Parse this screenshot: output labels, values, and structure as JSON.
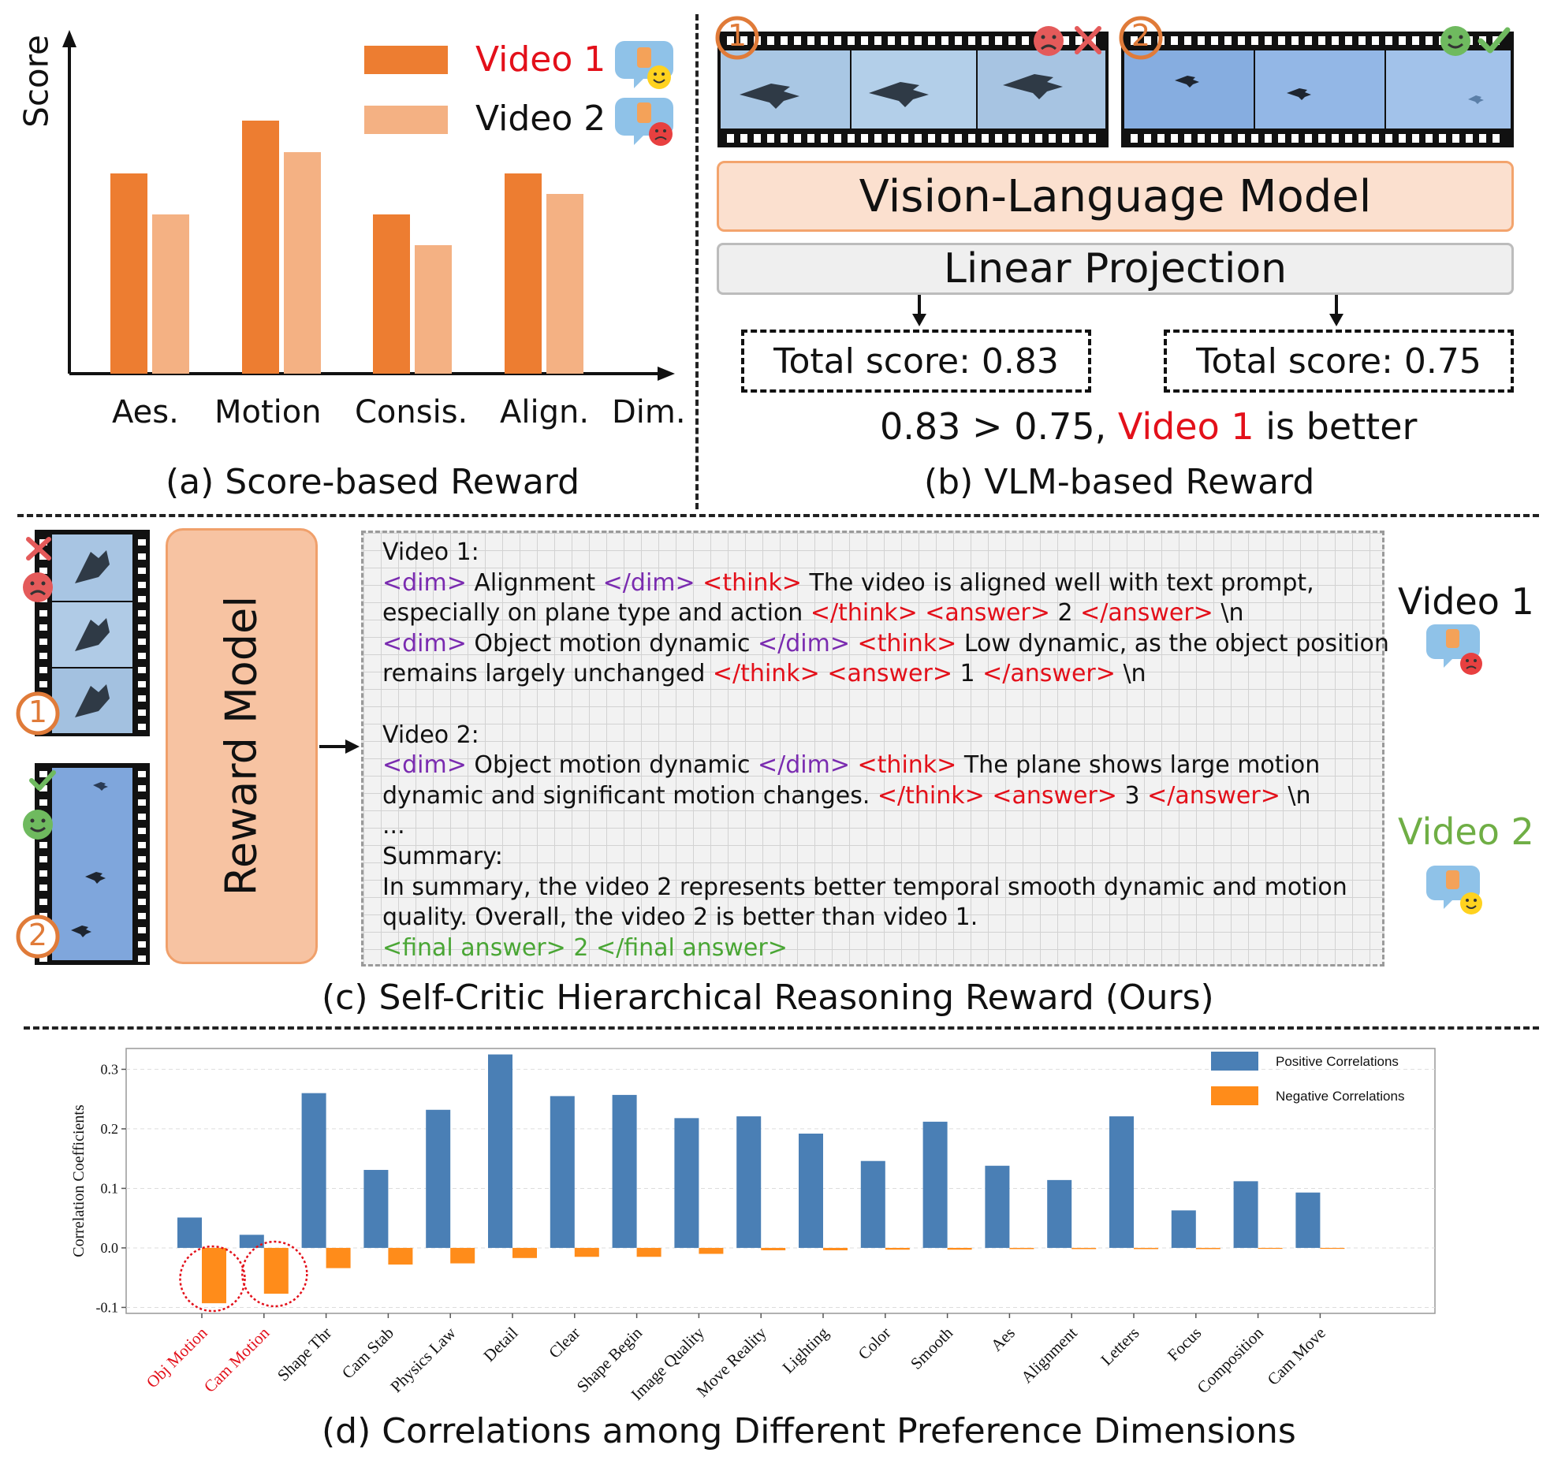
{
  "panel_a": {
    "caption": "(a) Score-based Reward",
    "y_axis_label": "Score",
    "legend": [
      "Video 1",
      "Video 2"
    ],
    "x_labels": [
      "Aes.",
      "Motion",
      "Consis.",
      "Align.",
      "Dim."
    ],
    "colors": {
      "video1": "#ed7d31",
      "video2": "#f4b183"
    }
  },
  "panel_b": {
    "caption": "(b) VLM-based Reward",
    "markers": [
      "1",
      "2"
    ],
    "vlm_label": "Vision-Language Model",
    "linear_label": "Linear Projection",
    "score1": "Total score: 0.83",
    "score2": "Total score: 0.75",
    "verdict_prefix": "0.83 > 0.75, ",
    "verdict_video": "Video 1",
    "verdict_suffix": " is better"
  },
  "panel_c": {
    "caption": "(c) Self-Critic Hierarchical Reasoning Reward (Ours)",
    "markers": [
      "1",
      "2"
    ],
    "reward_model_label": "Reward Model",
    "video1_label": "Video 1",
    "video2_label": "Video 2",
    "reasoning": {
      "l1": "Video 1:",
      "l2_dim": "<dim>",
      "l2_text": " Alignment ",
      "l2_dimc": "</dim>",
      "l2_think": " <think>",
      "l2_rest": " The video is aligned well with text prompt,",
      "l3_text": "especially on plane type and action ",
      "l3_thinkc": "</think>",
      "l3_ans": " <answer>",
      "l3_val": " 2 ",
      "l3_ansc": "</answer>",
      "l3_nl": " \\n",
      "l4_dim": "<dim>",
      "l4_text": " Object motion dynamic ",
      "l4_dimc": "</dim>",
      "l4_think": " <think>",
      "l4_rest": " Low dynamic, as the object position",
      "l5_text": "remains largely unchanged ",
      "l5_thinkc": "</think>",
      "l5_ans": " <answer>",
      "l5_val": " 1 ",
      "l5_ansc": "</answer>",
      "l5_nl": " \\n",
      "l6": "Video 2:",
      "l7_dim": "<dim>",
      "l7_text": " Object motion dynamic ",
      "l7_dimc": "</dim>",
      "l7_think": " <think>",
      "l7_rest": " The plane shows large motion",
      "l8_text": "dynamic and significant motion changes. ",
      "l8_thinkc": "</think>",
      "l8_ans": " <answer>",
      "l8_val": " 3 ",
      "l8_ansc": "</answer>",
      "l8_nl": " \\n",
      "l9": "...",
      "l10": "Summary:",
      "l11": "In summary, the video 2 represents better temporal smooth dynamic and motion",
      "l12": "quality. Overall, the video 2 is better than video 1.",
      "l13": "<final answer> 2 </final answer>"
    },
    "colors": {
      "purple": "#7a2bb0",
      "red": "#e3101a",
      "green": "#4aa635"
    }
  },
  "panel_d": {
    "caption": "(d) Correlations among Different Preference Dimensions"
  },
  "chart_data": {
    "type": "bar",
    "title": "",
    "ylabel": "Correlation Coefficients",
    "ylim": [
      -0.11,
      0.335
    ],
    "yticks": [
      "0.3",
      "0.2",
      "0.1",
      "0.0",
      "-0.1"
    ],
    "ytick_values": [
      0.3,
      0.2,
      0.1,
      0.0,
      -0.1
    ],
    "grid": true,
    "legend_position": "top-right",
    "categories": [
      "Obj Motion",
      "Cam Motion",
      "Shape Thr",
      "Cam Stab",
      "Physics Law",
      "Detail",
      "Clear",
      "Shape Begin",
      "Image Quality",
      "Move Reality",
      "Lighting",
      "Color",
      "Smooth",
      "Aes",
      "Alignment",
      "Letters",
      "Focus",
      "Composition",
      "Cam Move"
    ],
    "highlighted_categories": [
      "Obj Motion",
      "Cam Motion"
    ],
    "series": [
      {
        "name": "Positive Correlations",
        "color": "#4a7fb5",
        "values": [
          0.051,
          0.022,
          0.26,
          0.131,
          0.232,
          0.325,
          0.255,
          0.257,
          0.218,
          0.221,
          0.192,
          0.146,
          0.212,
          0.138,
          0.114,
          0.221,
          0.063,
          0.112,
          0.093
        ]
      },
      {
        "name": "Negative Correlations",
        "color": "#ff8c1a",
        "values": [
          -0.093,
          -0.077,
          -0.034,
          -0.028,
          -0.026,
          -0.017,
          -0.015,
          -0.015,
          -0.01,
          -0.004,
          -0.004,
          -0.003,
          -0.003,
          -0.002,
          -0.002,
          -0.002,
          -0.002,
          0,
          0
        ]
      }
    ]
  }
}
